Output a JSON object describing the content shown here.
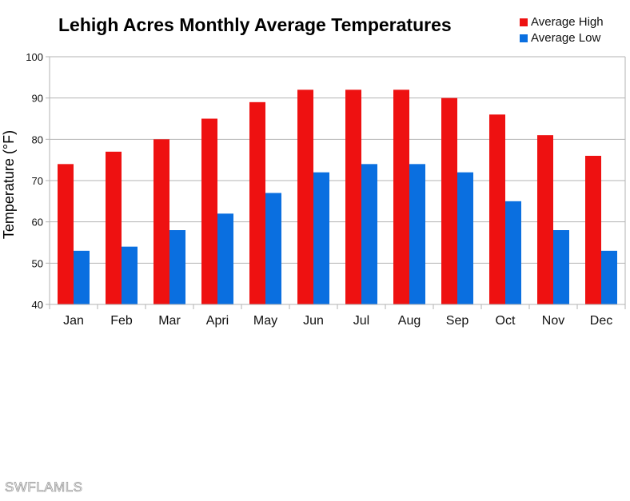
{
  "chart_data": {
    "type": "bar",
    "title": "Lehigh Acres Monthly Average Temperatures",
    "xlabel": "",
    "ylabel": "Temperature (°F)",
    "ylim": [
      40,
      100
    ],
    "yticks": [
      "40",
      "50",
      "60",
      "70",
      "80",
      "90",
      "100"
    ],
    "grid": true,
    "legend_placement": "top-right",
    "categories": [
      "Jan",
      "Feb",
      "Mar",
      "Apri",
      "May",
      "Jun",
      "Jul",
      "Aug",
      "Sep",
      "Oct",
      "Nov",
      "Dec"
    ],
    "series": [
      {
        "name": "Average High",
        "color": "#ee1111",
        "values": [
          74,
          77,
          80,
          85,
          89,
          92,
          92,
          92,
          90,
          86,
          81,
          76
        ]
      },
      {
        "name": "Average Low",
        "color": "#0a6fe0",
        "values": [
          53,
          54,
          58,
          62,
          67,
          72,
          74,
          74,
          72,
          65,
          58,
          53
        ]
      }
    ]
  },
  "watermark": "SWFLAMLS"
}
